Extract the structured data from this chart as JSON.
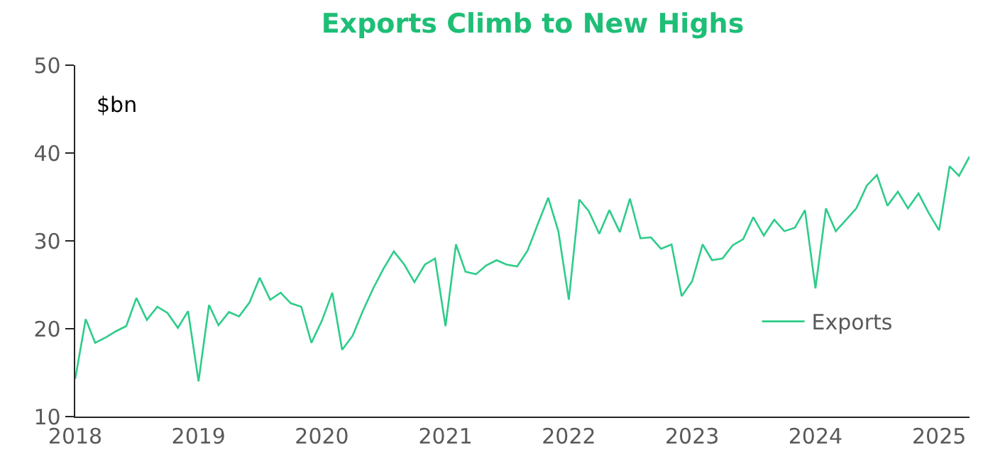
{
  "chart_data": {
    "type": "line",
    "title": "Exports Climb to New Highs",
    "ylabel": "$bn",
    "x": [
      "2018-01",
      "2018-02",
      "2018-03",
      "2018-04",
      "2018-05",
      "2018-06",
      "2018-07",
      "2018-08",
      "2018-09",
      "2018-10",
      "2018-11",
      "2018-12",
      "2019-01",
      "2019-02",
      "2019-03",
      "2019-04",
      "2019-05",
      "2019-06",
      "2019-07",
      "2019-08",
      "2019-09",
      "2019-10",
      "2019-11",
      "2019-12",
      "2020-01",
      "2020-02",
      "2020-03",
      "2020-04",
      "2020-05",
      "2020-06",
      "2020-07",
      "2020-08",
      "2020-09",
      "2020-10",
      "2020-11",
      "2020-12",
      "2021-01",
      "2021-02",
      "2021-03",
      "2021-04",
      "2021-05",
      "2021-06",
      "2021-07",
      "2021-08",
      "2021-09",
      "2021-10",
      "2021-11",
      "2021-12",
      "2022-01",
      "2022-02",
      "2022-03",
      "2022-04",
      "2022-05",
      "2022-06",
      "2022-07",
      "2022-08",
      "2022-09",
      "2022-10",
      "2022-11",
      "2022-12",
      "2023-01",
      "2023-02",
      "2023-03",
      "2023-04",
      "2023-05",
      "2023-06",
      "2023-07",
      "2023-08",
      "2023-09",
      "2023-10",
      "2023-11",
      "2023-12",
      "2024-01",
      "2024-02",
      "2024-03",
      "2024-04",
      "2024-05",
      "2024-06",
      "2024-07",
      "2024-08",
      "2024-09",
      "2024-10",
      "2024-11",
      "2024-12",
      "2025-01",
      "2025-02",
      "2025-03",
      "2025-04"
    ],
    "series": [
      {
        "name": "Exports",
        "color": "#2ecc8a",
        "values": [
          14.3,
          21.1,
          18.4,
          19.0,
          19.7,
          20.3,
          23.5,
          21.0,
          22.5,
          21.8,
          20.1,
          22.0,
          14.0,
          22.7,
          20.4,
          21.9,
          21.4,
          23.0,
          25.8,
          23.3,
          24.1,
          22.9,
          22.5,
          18.4,
          20.9,
          24.1,
          17.6,
          19.2,
          22.0,
          24.6,
          26.8,
          28.8,
          27.3,
          25.3,
          27.3,
          28.0,
          20.3,
          29.6,
          26.5,
          26.2,
          27.2,
          27.8,
          27.3,
          27.1,
          28.9,
          31.9,
          34.9,
          31.1,
          23.3,
          34.7,
          33.4,
          30.8,
          33.5,
          31.0,
          34.8,
          30.3,
          30.4,
          29.1,
          29.6,
          23.7,
          25.4,
          29.6,
          27.8,
          28.0,
          29.5,
          30.2,
          32.7,
          30.6,
          32.4,
          31.1,
          31.5,
          33.5,
          24.6,
          33.7,
          31.1,
          32.4,
          33.7,
          36.3,
          37.5,
          34.0,
          35.6,
          33.7,
          35.4,
          33.2,
          31.2,
          38.5,
          37.4,
          39.6
        ]
      }
    ],
    "xlim": [
      "2018-01",
      "2025-04"
    ],
    "xticks": [
      {
        "value": "2018-01",
        "label": "2018"
      },
      {
        "value": "2019-01",
        "label": "2019"
      },
      {
        "value": "2020-01",
        "label": "2020"
      },
      {
        "value": "2021-01",
        "label": "2021"
      },
      {
        "value": "2022-01",
        "label": "2022"
      },
      {
        "value": "2023-01",
        "label": "2023"
      },
      {
        "value": "2024-01",
        "label": "2024"
      },
      {
        "value": "2025-01",
        "label": "2025"
      }
    ],
    "ylim": [
      10,
      50
    ],
    "yticks": [
      10,
      20,
      30,
      40,
      50
    ],
    "legend": "bottom right",
    "marker": "none",
    "line_style": "solid"
  }
}
